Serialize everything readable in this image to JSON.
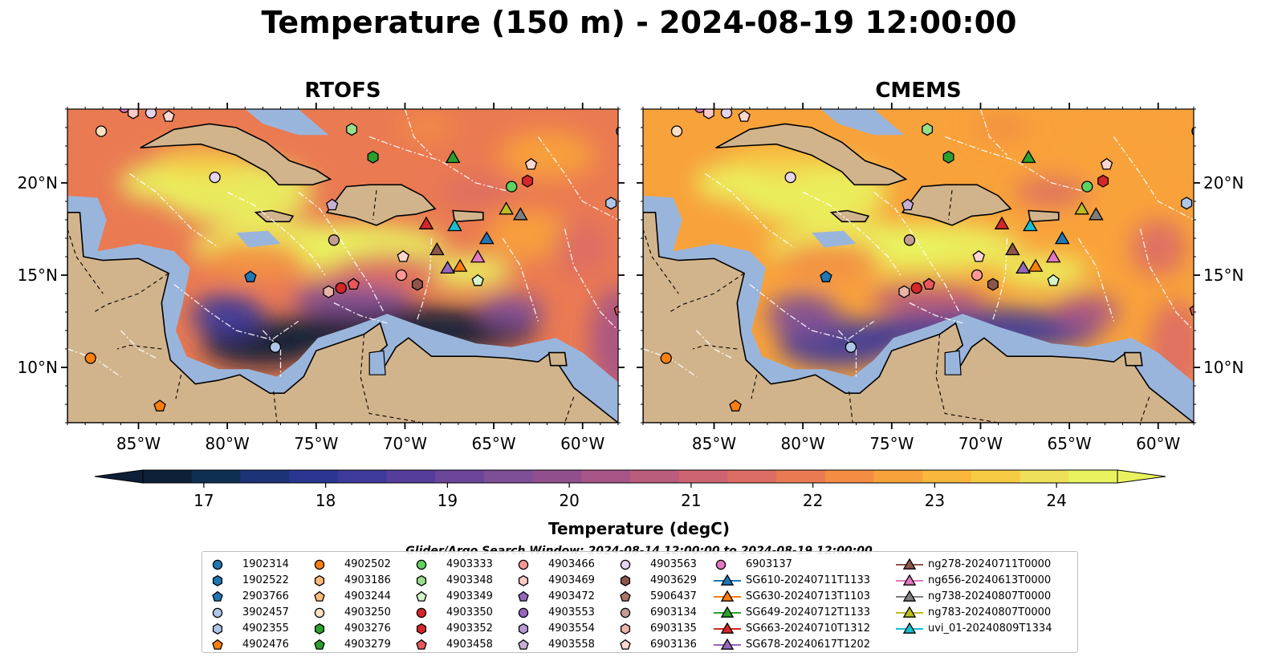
{
  "title": "Temperature (150 m) - 2024-08-19 12:00:00",
  "panels": [
    {
      "title": "RTOFS"
    },
    {
      "title": "CMEMS"
    }
  ],
  "axes": {
    "lon_labels": [
      "85°W",
      "80°W",
      "75°W",
      "70°W",
      "65°W",
      "60°W"
    ],
    "lon_values": [
      -85,
      -80,
      -75,
      -70,
      -65,
      -60
    ],
    "lat_labels": [
      "20°N",
      "15°N",
      "10°N"
    ],
    "lat_values": [
      20,
      15,
      10
    ],
    "lon_range": [
      -89,
      -58
    ],
    "lat_range": [
      7,
      24
    ]
  },
  "colorbar": {
    "label": "Temperature (degC)",
    "tick_labels": [
      "17",
      "18",
      "19",
      "20",
      "21",
      "22",
      "23",
      "24"
    ],
    "tick_values": [
      17,
      18,
      19,
      20,
      21,
      22,
      23,
      24
    ],
    "range": [
      16.5,
      24.5
    ],
    "extend": "both",
    "colors": [
      "#0e2038",
      "#0f2f52",
      "#1c3378",
      "#2b3690",
      "#3e3a9a",
      "#553e9b",
      "#6a4599",
      "#7e4e97",
      "#924f8e",
      "#a75586",
      "#ba5c7c",
      "#cd6472",
      "#dc6d64",
      "#ea7a52",
      "#f38d43",
      "#f8a23b",
      "#f9b73c",
      "#f6cb44",
      "#eee05a",
      "#e9f35f"
    ]
  },
  "search_window": "Glider/Argo Search Window: 2024-08-14 12:00:00 to 2024-08-19 12:00:00",
  "map_colors": {
    "land": "#d2b48c",
    "shelf": "#9ab5dc",
    "deep": "#0c2033",
    "coast": "#000000",
    "eez": "#ffffff"
  },
  "legend": {
    "columns": [
      [
        {
          "label": "1902314",
          "marker": "circle",
          "color": "#1f77b4"
        },
        {
          "label": "1902522",
          "marker": "hexagon",
          "color": "#1f77b4"
        },
        {
          "label": "2903766",
          "marker": "pentagon",
          "color": "#1f77b4"
        },
        {
          "label": "3902457",
          "marker": "circle",
          "color": "#aec7e8"
        },
        {
          "label": "4902355",
          "marker": "hexagon",
          "color": "#aec7e8"
        },
        {
          "label": "4902476",
          "marker": "pentagon",
          "color": "#ff7f0e"
        }
      ],
      [
        {
          "label": "4902502",
          "marker": "circle",
          "color": "#ff7f0e"
        },
        {
          "label": "4903186",
          "marker": "hexagon",
          "color": "#ffbb78"
        },
        {
          "label": "4903244",
          "marker": "pentagon",
          "color": "#ffbb78"
        },
        {
          "label": "4903250",
          "marker": "circle",
          "color": "#ffe0c2"
        },
        {
          "label": "4903276",
          "marker": "hexagon",
          "color": "#2ca02c"
        },
        {
          "label": "4903279",
          "marker": "pentagon",
          "color": "#2ca02c"
        }
      ],
      [
        {
          "label": "4903333",
          "marker": "circle",
          "color": "#5fd35f"
        },
        {
          "label": "4903348",
          "marker": "hexagon",
          "color": "#98df8a"
        },
        {
          "label": "4903349",
          "marker": "pentagon",
          "color": "#d4f7c9"
        },
        {
          "label": "4903350",
          "marker": "circle",
          "color": "#d62728"
        },
        {
          "label": "4903352",
          "marker": "hexagon",
          "color": "#d62728"
        },
        {
          "label": "4903458",
          "marker": "pentagon",
          "color": "#e8585a"
        }
      ],
      [
        {
          "label": "4903466",
          "marker": "circle",
          "color": "#ff9896"
        },
        {
          "label": "4903469",
          "marker": "hexagon",
          "color": "#ffc9c8"
        },
        {
          "label": "4903472",
          "marker": "pentagon",
          "color": "#9467bd"
        },
        {
          "label": "4903553",
          "marker": "circle",
          "color": "#9467bd"
        },
        {
          "label": "4903554",
          "marker": "hexagon",
          "color": "#b89ad6"
        },
        {
          "label": "4903558",
          "marker": "pentagon",
          "color": "#c5b0d5"
        }
      ],
      [
        {
          "label": "4903563",
          "marker": "circle",
          "color": "#e6d3f0"
        },
        {
          "label": "4903629",
          "marker": "hexagon",
          "color": "#8c564b"
        },
        {
          "label": "5906437",
          "marker": "pentagon",
          "color": "#a87567"
        },
        {
          "label": "6903134",
          "marker": "circle",
          "color": "#c49c94"
        },
        {
          "label": "6903135",
          "marker": "hexagon",
          "color": "#e8b4a8"
        },
        {
          "label": "6903136",
          "marker": "pentagon",
          "color": "#fcd7cf"
        }
      ],
      [
        {
          "label": "6903137",
          "marker": "circle",
          "color": "#e377c2"
        },
        {
          "label": "SG610-20240711T1133",
          "marker": "triangle-line",
          "color": "#1f77b4"
        },
        {
          "label": "SG630-20240713T1103",
          "marker": "triangle-line",
          "color": "#ff7f0e"
        },
        {
          "label": "SG649-20240712T1133",
          "marker": "triangle-line",
          "color": "#2ca02c"
        },
        {
          "label": "SG663-20240710T1312",
          "marker": "triangle-line",
          "color": "#d62728"
        },
        {
          "label": "SG678-20240617T1202",
          "marker": "triangle-line",
          "color": "#9467bd"
        }
      ],
      [
        {
          "label": "ng278-20240711T0000",
          "marker": "triangle-line",
          "color": "#8c564b"
        },
        {
          "label": "ng656-20240613T0000",
          "marker": "triangle-line",
          "color": "#e377c2"
        },
        {
          "label": "ng738-20240807T0000",
          "marker": "triangle-line",
          "color": "#7f7f7f"
        },
        {
          "label": "ng783-20240807T0000",
          "marker": "triangle-line",
          "color": "#bcbd22"
        },
        {
          "label": "uvi_01-20240809T1334",
          "marker": "triangle-line",
          "color": "#17becf"
        }
      ]
    ]
  },
  "markers": [
    {
      "label": "6903137",
      "marker": "circle",
      "color": "#e377c2",
      "lon": -85.8,
      "lat": 24.1
    },
    {
      "label": "4903469",
      "marker": "hexagon",
      "color": "#ffc9c8",
      "lon": -85.3,
      "lat": 23.8
    },
    {
      "label": "4903563",
      "marker": "circle",
      "color": "#e6d3f0",
      "lon": -84.3,
      "lat": 23.8
    },
    {
      "label": "6903136",
      "marker": "pentagon",
      "color": "#fcd7cf",
      "lon": -83.3,
      "lat": 23.6
    },
    {
      "label": "4903250",
      "marker": "circle",
      "color": "#ffe0c2",
      "lon": -87.1,
      "lat": 22.8
    },
    {
      "label": "4903563",
      "marker": "circle",
      "color": "#e6d3f0",
      "lon": -80.7,
      "lat": 20.3
    },
    {
      "label": "4903348",
      "marker": "hexagon",
      "color": "#98df8a",
      "lon": -73.0,
      "lat": 22.9
    },
    {
      "label": "4903276",
      "marker": "hexagon",
      "color": "#2ca02c",
      "lon": -71.8,
      "lat": 21.4
    },
    {
      "label": "SG649-20240712T1133",
      "marker": "triangle",
      "color": "#2ca02c",
      "lon": -67.3,
      "lat": 21.4
    },
    {
      "label": "6903136",
      "marker": "pentagon",
      "color": "#fcd7cf",
      "lon": -62.9,
      "lat": 21.0
    },
    {
      "label": "4903333",
      "marker": "circle",
      "color": "#5fd35f",
      "lon": -64.0,
      "lat": 19.8
    },
    {
      "label": "4903352",
      "marker": "hexagon",
      "color": "#d62728",
      "lon": -63.1,
      "lat": 20.1
    },
    {
      "label": "1902314",
      "marker": "circle",
      "color": "#1f77b4",
      "lon": -57.8,
      "lat": 22.8
    },
    {
      "label": "4903558",
      "marker": "pentagon",
      "color": "#c5b0d5",
      "lon": -74.1,
      "lat": 18.8
    },
    {
      "label": "4902355",
      "marker": "hexagon",
      "color": "#aec7e8",
      "lon": -58.4,
      "lat": 18.9
    },
    {
      "label": "ng783-20240807T0000",
      "marker": "triangle",
      "color": "#bcbd22",
      "lon": -64.3,
      "lat": 18.6
    },
    {
      "label": "ng738-20240807T0000",
      "marker": "triangle",
      "color": "#7f7f7f",
      "lon": -63.5,
      "lat": 18.3
    },
    {
      "label": "SG663-20240710T1312",
      "marker": "triangle",
      "color": "#d62728",
      "lon": -68.8,
      "lat": 17.8
    },
    {
      "label": "uvi_01-20240809T1334",
      "marker": "triangle",
      "color": "#17becf",
      "lon": -67.2,
      "lat": 17.7
    },
    {
      "label": "SG610-20240711T1133",
      "marker": "triangle",
      "color": "#1f77b4",
      "lon": -65.4,
      "lat": 17.0
    },
    {
      "label": "6903134",
      "marker": "circle",
      "color": "#c49c94",
      "lon": -74.0,
      "lat": 16.9
    },
    {
      "label": "ng278-20240711T0000",
      "marker": "triangle",
      "color": "#8c564b",
      "lon": -68.2,
      "lat": 16.4
    },
    {
      "label": "6903136",
      "marker": "pentagon",
      "color": "#fcd7cf",
      "lon": -70.1,
      "lat": 16.0
    },
    {
      "label": "ng656-20240613T0000",
      "marker": "triangle",
      "color": "#e377c2",
      "lon": -65.9,
      "lat": 16.0
    },
    {
      "label": "SG630-20240713T1103",
      "marker": "triangle",
      "color": "#ff7f0e",
      "lon": -66.9,
      "lat": 15.5
    },
    {
      "label": "SG678-20240617T1202",
      "marker": "triangle",
      "color": "#9467bd",
      "lon": -67.6,
      "lat": 15.4
    },
    {
      "label": "4903349",
      "marker": "pentagon",
      "color": "#d4f7c9",
      "lon": -65.9,
      "lat": 14.7
    },
    {
      "label": "4903466",
      "marker": "circle",
      "color": "#ff9896",
      "lon": -70.2,
      "lat": 15.0
    },
    {
      "label": "2903766",
      "marker": "pentagon",
      "color": "#1f77b4",
      "lon": -78.7,
      "lat": 14.9
    },
    {
      "label": "4903629",
      "marker": "hexagon",
      "color": "#8c564b",
      "lon": -69.3,
      "lat": 14.5
    },
    {
      "label": "4903350",
      "marker": "circle",
      "color": "#d62728",
      "lon": -73.6,
      "lat": 14.3
    },
    {
      "label": "4903458",
      "marker": "pentagon",
      "color": "#e8585a",
      "lon": -72.9,
      "lat": 14.5
    },
    {
      "label": "6903135",
      "marker": "hexagon",
      "color": "#e8b4a8",
      "lon": -74.3,
      "lat": 14.1
    },
    {
      "label": "4903458",
      "marker": "pentagon",
      "color": "#e8585a",
      "lon": -57.9,
      "lat": 13.1
    },
    {
      "label": "3902457",
      "marker": "circle",
      "color": "#aec7e8",
      "lon": -77.3,
      "lat": 11.1
    },
    {
      "label": "4902502",
      "marker": "circle",
      "color": "#ff7f0e",
      "lon": -87.7,
      "lat": 10.5
    },
    {
      "label": "4902476",
      "marker": "pentagon",
      "color": "#ff7f0e",
      "lon": -83.8,
      "lat": 7.9
    }
  ]
}
